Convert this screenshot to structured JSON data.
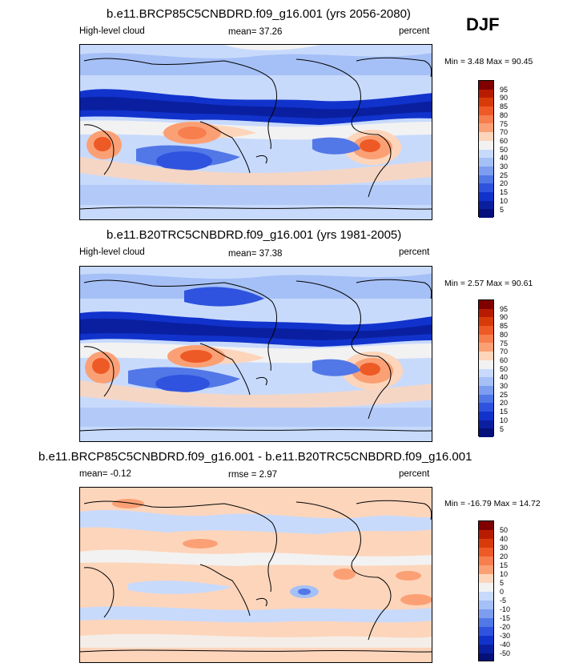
{
  "season": "DJF",
  "panels": [
    {
      "title": "b.e11.BRCP85C5CNBDRD.f09_g16.001 (yrs 2056-2080)",
      "left_label": "High-level cloud",
      "center_label": "mean=  37.26",
      "right_label": "percent",
      "minmax": "Min =  3.48 Max =  90.45",
      "colorbar": {
        "levels": [
          "95",
          "90",
          "85",
          "80",
          "75",
          "70",
          "60",
          "50",
          "40",
          "30",
          "25",
          "20",
          "15",
          "10",
          "5"
        ],
        "colors": [
          "#800000",
          "#b81c00",
          "#d83b0a",
          "#ee5a26",
          "#f77e4d",
          "#fba075",
          "#fdd5bb",
          "#f2f2f2",
          "#c8dafc",
          "#a5c0f6",
          "#7d9df0",
          "#5277e7",
          "#2f53de",
          "#1133cc",
          "#0a1fa0",
          "#05107a"
        ]
      }
    },
    {
      "title": "b.e11.B20TRC5CNBDRD.f09_g16.001 (yrs 1981-2005)",
      "left_label": "High-level cloud",
      "center_label": "mean=  37.38",
      "right_label": "percent",
      "minmax": "Min =  2.57 Max =  90.61",
      "colorbar": {
        "levels": [
          "95",
          "90",
          "85",
          "80",
          "75",
          "70",
          "60",
          "50",
          "40",
          "30",
          "25",
          "20",
          "15",
          "10",
          "5"
        ],
        "colors": [
          "#800000",
          "#b81c00",
          "#d83b0a",
          "#ee5a26",
          "#f77e4d",
          "#fba075",
          "#fdd5bb",
          "#f2f2f2",
          "#c8dafc",
          "#a5c0f6",
          "#7d9df0",
          "#5277e7",
          "#2f53de",
          "#1133cc",
          "#0a1fa0",
          "#05107a"
        ]
      }
    },
    {
      "title": "b.e11.BRCP85C5CNBDRD.f09_g16.001 - b.e11.B20TRC5CNBDRD.f09_g16.001",
      "left_label": "mean=  -0.12",
      "center_label": "rmse =  2.97",
      "right_label": "percent",
      "minmax": "Min = -16.79 Max =  14.72",
      "colorbar": {
        "levels": [
          "50",
          "40",
          "30",
          "20",
          "15",
          "10",
          "5",
          "0",
          "-5",
          "-10",
          "-15",
          "-20",
          "-30",
          "-40",
          "-50"
        ],
        "colors": [
          "#800000",
          "#b81c00",
          "#d83b0a",
          "#ee5a26",
          "#f77e4d",
          "#fba075",
          "#fdd5bb",
          "#f2f2f2",
          "#c8dafc",
          "#a5c0f6",
          "#7d9df0",
          "#5277e7",
          "#2f53de",
          "#1133cc",
          "#0a1fa0",
          "#05107a"
        ]
      }
    }
  ],
  "chart_data": [
    {
      "type": "heatmap",
      "title": "b.e11.BRCP85C5CNBDRD.f09_g16.001 (yrs 2056-2080)",
      "variable": "High-level cloud",
      "units": "percent",
      "mean": 37.26,
      "min": 3.48,
      "max": 90.45,
      "season": "DJF",
      "contour_levels": [
        5,
        10,
        15,
        20,
        25,
        30,
        40,
        50,
        60,
        70,
        75,
        80,
        85,
        90,
        95
      ]
    },
    {
      "type": "heatmap",
      "title": "b.e11.B20TRC5CNBDRD.f09_g16.001 (yrs 1981-2005)",
      "variable": "High-level cloud",
      "units": "percent",
      "mean": 37.38,
      "min": 2.57,
      "max": 90.61,
      "season": "DJF",
      "contour_levels": [
        5,
        10,
        15,
        20,
        25,
        30,
        40,
        50,
        60,
        70,
        75,
        80,
        85,
        90,
        95
      ]
    },
    {
      "type": "heatmap",
      "title": "b.e11.BRCP85C5CNBDRD.f09_g16.001 - b.e11.B20TRC5CNBDRD.f09_g16.001",
      "units": "percent",
      "mean": -0.12,
      "rmse": 2.97,
      "min": -16.79,
      "max": 14.72,
      "season": "DJF",
      "contour_levels": [
        -50,
        -40,
        -30,
        -20,
        -15,
        -10,
        -5,
        0,
        5,
        10,
        15,
        20,
        30,
        40,
        50
      ]
    }
  ]
}
